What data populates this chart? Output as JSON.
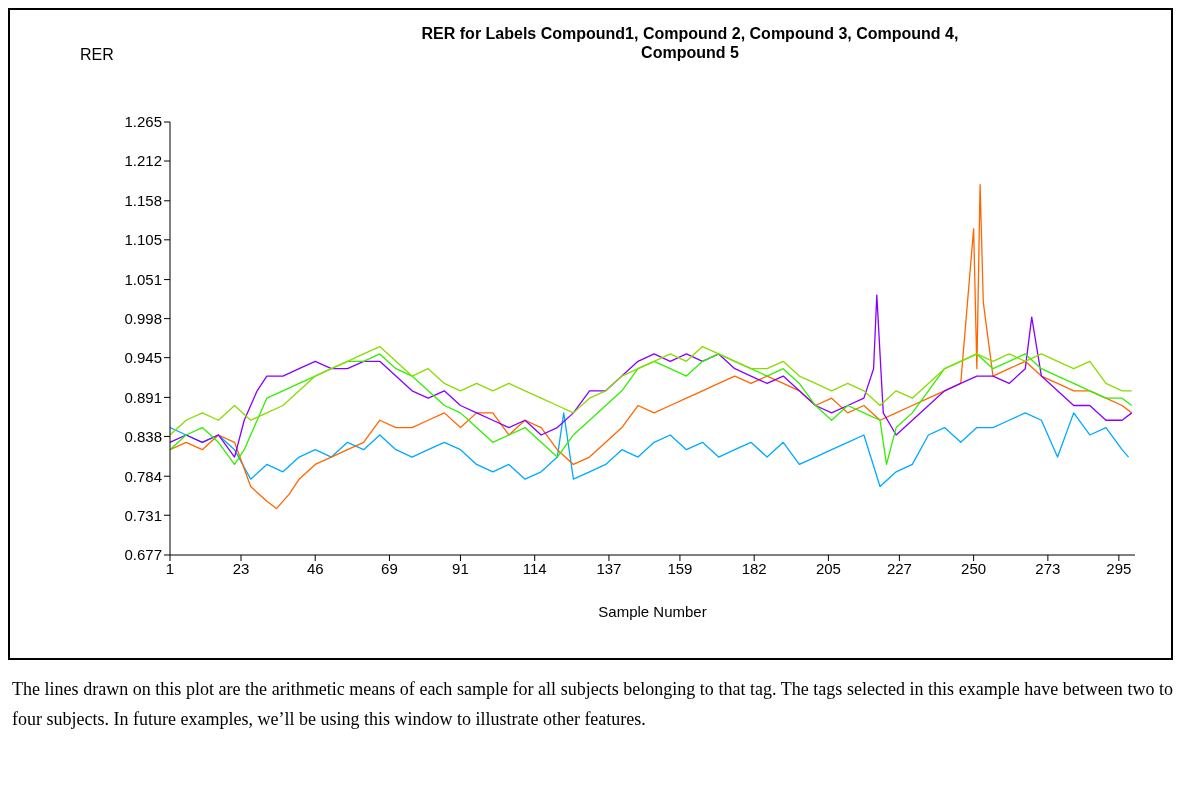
{
  "chart_data": {
    "type": "line",
    "title": "RER for Labels Compound1, Compound 2, Compound 3, Compound 4, Compound 5",
    "ylabel": "RER",
    "xlabel": "Sample Number",
    "xlim": [
      1,
      300
    ],
    "xticks": [
      1,
      23,
      46,
      69,
      91,
      114,
      137,
      159,
      182,
      205,
      227,
      250,
      273,
      295
    ],
    "ylim": [
      0.677,
      1.265
    ],
    "yticks": [
      0.677,
      0.731,
      0.784,
      0.838,
      0.891,
      0.945,
      0.998,
      1.051,
      1.105,
      1.158,
      1.212,
      1.265
    ],
    "grid": false,
    "marker": "none",
    "annotations": [
      "The lines drawn on this plot are the arithmetic means of each sample for all subjects belonging to that tag.  The tags selected in this example have between two to four subjects.  In future examples, we’ll be using this window to illustrate other features."
    ],
    "series": [
      {
        "color": "#00aaff",
        "x": [
          1,
          6,
          11,
          16,
          21,
          26,
          31,
          36,
          41,
          46,
          51,
          56,
          61,
          66,
          71,
          76,
          81,
          86,
          91,
          96,
          101,
          106,
          111,
          116,
          121,
          123,
          126,
          131,
          136,
          141,
          146,
          151,
          156,
          161,
          166,
          171,
          176,
          181,
          186,
          191,
          196,
          201,
          206,
          211,
          216,
          221,
          226,
          231,
          236,
          241,
          246,
          251,
          256,
          261,
          266,
          271,
          276,
          281,
          286,
          291,
          296,
          298
        ],
        "values": [
          0.85,
          0.84,
          0.83,
          0.84,
          0.82,
          0.78,
          0.8,
          0.79,
          0.81,
          0.82,
          0.81,
          0.83,
          0.82,
          0.84,
          0.82,
          0.81,
          0.82,
          0.83,
          0.82,
          0.8,
          0.79,
          0.8,
          0.78,
          0.79,
          0.81,
          0.87,
          0.78,
          0.79,
          0.8,
          0.82,
          0.81,
          0.83,
          0.84,
          0.82,
          0.83,
          0.81,
          0.82,
          0.83,
          0.81,
          0.83,
          0.8,
          0.81,
          0.82,
          0.83,
          0.84,
          0.77,
          0.79,
          0.8,
          0.84,
          0.85,
          0.83,
          0.85,
          0.85,
          0.86,
          0.87,
          0.86,
          0.81,
          0.87,
          0.84,
          0.85,
          0.82,
          0.81
        ]
      },
      {
        "color": "#ff6600",
        "x": [
          1,
          6,
          11,
          16,
          21,
          26,
          31,
          34,
          38,
          41,
          46,
          51,
          56,
          61,
          66,
          71,
          76,
          81,
          86,
          91,
          96,
          101,
          106,
          111,
          116,
          121,
          126,
          131,
          136,
          141,
          146,
          151,
          156,
          161,
          166,
          171,
          176,
          181,
          186,
          191,
          196,
          201,
          206,
          211,
          216,
          221,
          226,
          231,
          236,
          241,
          246,
          250,
          251,
          252,
          253,
          256,
          261,
          266,
          271,
          276,
          281,
          286,
          291,
          296,
          299
        ],
        "values": [
          0.82,
          0.83,
          0.82,
          0.84,
          0.83,
          0.77,
          0.75,
          0.74,
          0.76,
          0.78,
          0.8,
          0.81,
          0.82,
          0.83,
          0.86,
          0.85,
          0.85,
          0.86,
          0.87,
          0.85,
          0.87,
          0.87,
          0.84,
          0.86,
          0.85,
          0.82,
          0.8,
          0.81,
          0.83,
          0.85,
          0.88,
          0.87,
          0.88,
          0.89,
          0.9,
          0.91,
          0.92,
          0.91,
          0.92,
          0.91,
          0.9,
          0.88,
          0.89,
          0.87,
          0.88,
          0.86,
          0.87,
          0.88,
          0.89,
          0.9,
          0.91,
          1.12,
          0.93,
          1.18,
          1.02,
          0.92,
          0.93,
          0.94,
          0.92,
          0.91,
          0.9,
          0.9,
          0.89,
          0.88,
          0.87
        ]
      },
      {
        "color": "#8800ff",
        "x": [
          1,
          6,
          11,
          16,
          21,
          24,
          28,
          31,
          36,
          41,
          46,
          51,
          56,
          61,
          66,
          71,
          76,
          81,
          86,
          91,
          96,
          101,
          106,
          111,
          116,
          121,
          126,
          131,
          136,
          141,
          146,
          151,
          156,
          161,
          166,
          171,
          176,
          181,
          186,
          191,
          196,
          201,
          206,
          211,
          216,
          219,
          220,
          222,
          226,
          231,
          236,
          241,
          246,
          251,
          256,
          261,
          266,
          268,
          271,
          276,
          281,
          286,
          291,
          296,
          299
        ],
        "values": [
          0.83,
          0.84,
          0.83,
          0.84,
          0.81,
          0.86,
          0.9,
          0.92,
          0.92,
          0.93,
          0.94,
          0.93,
          0.93,
          0.94,
          0.94,
          0.92,
          0.9,
          0.89,
          0.9,
          0.88,
          0.87,
          0.86,
          0.85,
          0.86,
          0.84,
          0.85,
          0.87,
          0.9,
          0.9,
          0.92,
          0.94,
          0.95,
          0.94,
          0.95,
          0.94,
          0.95,
          0.93,
          0.92,
          0.91,
          0.92,
          0.9,
          0.88,
          0.87,
          0.88,
          0.89,
          0.93,
          1.03,
          0.87,
          0.84,
          0.86,
          0.88,
          0.9,
          0.91,
          0.92,
          0.92,
          0.91,
          0.93,
          1.0,
          0.92,
          0.9,
          0.88,
          0.88,
          0.86,
          0.86,
          0.87
        ]
      },
      {
        "color": "#33ee00",
        "x": [
          1,
          6,
          11,
          16,
          21,
          24,
          28,
          31,
          36,
          41,
          46,
          51,
          56,
          61,
          66,
          71,
          76,
          81,
          86,
          91,
          96,
          101,
          106,
          111,
          116,
          121,
          126,
          131,
          136,
          141,
          146,
          151,
          156,
          161,
          166,
          171,
          176,
          181,
          186,
          191,
          196,
          201,
          206,
          211,
          216,
          221,
          223,
          226,
          231,
          236,
          241,
          246,
          251,
          256,
          261,
          266,
          271,
          276,
          281,
          286,
          291,
          296,
          299
        ],
        "values": [
          0.82,
          0.84,
          0.85,
          0.83,
          0.8,
          0.82,
          0.86,
          0.89,
          0.9,
          0.91,
          0.92,
          0.93,
          0.94,
          0.94,
          0.95,
          0.93,
          0.92,
          0.9,
          0.88,
          0.87,
          0.85,
          0.83,
          0.84,
          0.85,
          0.83,
          0.81,
          0.84,
          0.86,
          0.88,
          0.9,
          0.93,
          0.94,
          0.93,
          0.92,
          0.94,
          0.95,
          0.94,
          0.93,
          0.92,
          0.93,
          0.91,
          0.88,
          0.86,
          0.88,
          0.87,
          0.86,
          0.8,
          0.85,
          0.87,
          0.9,
          0.93,
          0.94,
          0.95,
          0.93,
          0.94,
          0.95,
          0.93,
          0.92,
          0.91,
          0.9,
          0.89,
          0.89,
          0.88
        ]
      },
      {
        "color": "#88dd00",
        "x": [
          1,
          6,
          11,
          16,
          21,
          26,
          31,
          36,
          41,
          46,
          51,
          56,
          61,
          66,
          71,
          76,
          81,
          86,
          91,
          96,
          101,
          106,
          111,
          116,
          121,
          126,
          131,
          136,
          141,
          146,
          151,
          156,
          161,
          166,
          171,
          176,
          181,
          186,
          191,
          196,
          201,
          206,
          211,
          216,
          221,
          226,
          231,
          236,
          241,
          246,
          251,
          256,
          261,
          266,
          271,
          276,
          281,
          286,
          291,
          296,
          299
        ],
        "values": [
          0.84,
          0.86,
          0.87,
          0.86,
          0.88,
          0.86,
          0.87,
          0.88,
          0.9,
          0.92,
          0.93,
          0.94,
          0.95,
          0.96,
          0.94,
          0.92,
          0.93,
          0.91,
          0.9,
          0.91,
          0.9,
          0.91,
          0.9,
          0.89,
          0.88,
          0.87,
          0.89,
          0.9,
          0.92,
          0.93,
          0.94,
          0.95,
          0.94,
          0.96,
          0.95,
          0.94,
          0.93,
          0.93,
          0.94,
          0.92,
          0.91,
          0.9,
          0.91,
          0.9,
          0.88,
          0.9,
          0.89,
          0.91,
          0.93,
          0.94,
          0.95,
          0.94,
          0.95,
          0.94,
          0.95,
          0.94,
          0.93,
          0.94,
          0.91,
          0.9,
          0.9
        ]
      }
    ]
  }
}
